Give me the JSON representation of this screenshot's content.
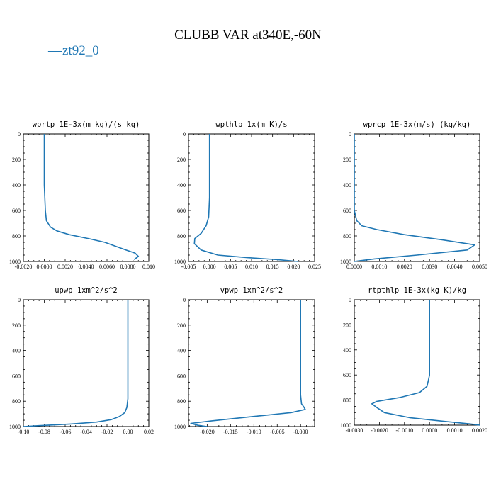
{
  "figure": {
    "title": "CLUBB VAR at340E,-60N",
    "legend": {
      "label": "zt92_0",
      "color": "#1f77b4",
      "marker": "—"
    }
  },
  "chart_data": [
    {
      "type": "line",
      "title": "wprtp  1E-3x(m kg)/(s kg)",
      "xlim": [
        -0.002,
        0.01
      ],
      "ylim": [
        1000,
        0
      ],
      "xticks": [
        -0.002,
        0.0,
        0.002,
        0.004,
        0.006,
        0.008,
        0.01
      ],
      "xtick_labels": [
        "-0.0020",
        "0.0000",
        "0.0020",
        "0.0040",
        "0.0060",
        "0.0080",
        "0.010"
      ],
      "yticks": [
        0,
        200,
        400,
        600,
        800,
        1000
      ],
      "ytick_labels": [
        "0",
        "200",
        "400",
        "600",
        "800",
        "1000"
      ],
      "series": [
        {
          "name": "zt92_0",
          "color": "#1f77b4",
          "x": [
            0.0,
            0.0,
            0.0001,
            0.0002,
            0.0006,
            0.0012,
            0.0024,
            0.0042,
            0.0058,
            0.0068,
            0.0078,
            0.0087,
            0.009,
            0.0086
          ],
          "y": [
            0,
            400,
            600,
            680,
            730,
            760,
            790,
            820,
            850,
            880,
            910,
            935,
            960,
            985
          ]
        }
      ]
    },
    {
      "type": "line",
      "title": "wpthlp  1x(m K)/s",
      "xlim": [
        -0.005,
        0.025
      ],
      "ylim": [
        1000,
        0
      ],
      "xticks": [
        -0.005,
        0.0,
        0.005,
        0.01,
        0.015,
        0.02,
        0.025
      ],
      "xtick_labels": [
        "-0.005",
        "0.000",
        "0.005",
        "0.010",
        "0.015",
        "0.020",
        "0.025"
      ],
      "yticks": [
        0,
        200,
        400,
        600,
        800,
        1000
      ],
      "ytick_labels": [
        "0",
        "200",
        "400",
        "600",
        "800",
        "1000"
      ],
      "series": [
        {
          "name": "zt92_0",
          "color": "#1f77b4",
          "x": [
            0.0,
            0.0,
            -0.0002,
            -0.0008,
            -0.002,
            -0.0035,
            -0.0036,
            -0.002,
            0.002,
            0.009,
            0.016,
            0.021
          ],
          "y": [
            0,
            500,
            650,
            720,
            780,
            820,
            860,
            910,
            950,
            970,
            985,
            1000
          ]
        }
      ]
    },
    {
      "type": "line",
      "title": "wprcp  1E-3x(m/s) (kg/kg)",
      "xlim": [
        0.0,
        0.005
      ],
      "ylim": [
        1000,
        0
      ],
      "xticks": [
        0.0,
        0.001,
        0.002,
        0.003,
        0.004,
        0.005
      ],
      "xtick_labels": [
        "0.0000",
        "0.0010",
        "0.0020",
        "0.0030",
        "0.0040",
        "0.0050"
      ],
      "yticks": [
        0,
        200,
        400,
        600,
        800,
        1000
      ],
      "ytick_labels": [
        "0",
        "200",
        "400",
        "600",
        "800",
        "1000"
      ],
      "series": [
        {
          "name": "zt92_0",
          "color": "#1f77b4",
          "x": [
            0.0,
            0.0,
            0.0001,
            0.0003,
            0.0009,
            0.002,
            0.0035,
            0.0048,
            0.0045,
            0.0025,
            0.0008,
            0.0
          ],
          "y": [
            0,
            600,
            680,
            720,
            750,
            790,
            830,
            870,
            910,
            950,
            980,
            1000
          ]
        }
      ]
    },
    {
      "type": "line",
      "title": "upwp  1xm^2/s^2",
      "xlim": [
        -0.1,
        0.02
      ],
      "ylim": [
        1000,
        0
      ],
      "xticks": [
        -0.1,
        -0.08,
        -0.06,
        -0.04,
        -0.02,
        0.0,
        0.02
      ],
      "xtick_labels": [
        "-0.10",
        "-0.08",
        "-0.06",
        "-0.04",
        "-0.02",
        "0.00",
        "0.02"
      ],
      "yticks": [
        0,
        200,
        400,
        600,
        800,
        1000
      ],
      "ytick_labels": [
        "0",
        "200",
        "400",
        "600",
        "800",
        "1000"
      ],
      "series": [
        {
          "name": "zt92_0",
          "color": "#1f77b4",
          "x": [
            0.0,
            0.0,
            -0.001,
            -0.003,
            -0.008,
            -0.016,
            -0.03,
            -0.055,
            -0.085,
            -0.1
          ],
          "y": [
            0,
            780,
            850,
            890,
            920,
            945,
            965,
            980,
            993,
            1000
          ]
        }
      ]
    },
    {
      "type": "line",
      "title": "vpwp  1xm^2/s^2",
      "xlim": [
        -0.024,
        0.003
      ],
      "ylim": [
        1000,
        0
      ],
      "xticks": [
        -0.02,
        -0.015,
        -0.01,
        -0.005,
        0.0
      ],
      "xtick_labels": [
        "-0.020",
        "-0.015",
        "-0.010",
        "-0.005",
        "-0.000"
      ],
      "yticks": [
        0,
        200,
        400,
        600,
        800,
        1000
      ],
      "ytick_labels": [
        "0",
        "200",
        "400",
        "600",
        "800",
        "1000"
      ],
      "series": [
        {
          "name": "zt92_0",
          "color": "#1f77b4",
          "x": [
            0.0,
            0.0,
            0.0002,
            0.0007,
            0.001,
            -0.002,
            -0.01,
            -0.019,
            -0.0235,
            -0.022,
            -0.02
          ],
          "y": [
            0,
            750,
            820,
            845,
            865,
            890,
            920,
            955,
            975,
            990,
            1000
          ]
        }
      ]
    },
    {
      "type": "line",
      "title": "rtpthlp  1E-3x(kg K)/kg",
      "xlim": [
        -0.003,
        0.002
      ],
      "ylim": [
        1000,
        0
      ],
      "xticks": [
        -0.003,
        -0.002,
        -0.001,
        0.0,
        0.001,
        0.002
      ],
      "xtick_labels": [
        "-0.0030",
        "-0.0020",
        "-0.0010",
        "0.0000",
        "0.0010",
        "0.0020"
      ],
      "yticks": [
        0,
        200,
        400,
        600,
        800,
        1000
      ],
      "ytick_labels": [
        "0",
        "200",
        "400",
        "600",
        "800",
        "1000"
      ],
      "series": [
        {
          "name": "zt92_0",
          "color": "#1f77b4",
          "x": [
            0.0,
            0.0,
            -0.0001,
            -0.0004,
            -0.0012,
            -0.0021,
            -0.0023,
            -0.0021,
            -0.0018,
            -0.0008,
            0.0006,
            0.0016,
            0.002
          ],
          "y": [
            0,
            600,
            690,
            740,
            780,
            810,
            830,
            860,
            900,
            940,
            970,
            990,
            1000
          ]
        }
      ]
    }
  ]
}
